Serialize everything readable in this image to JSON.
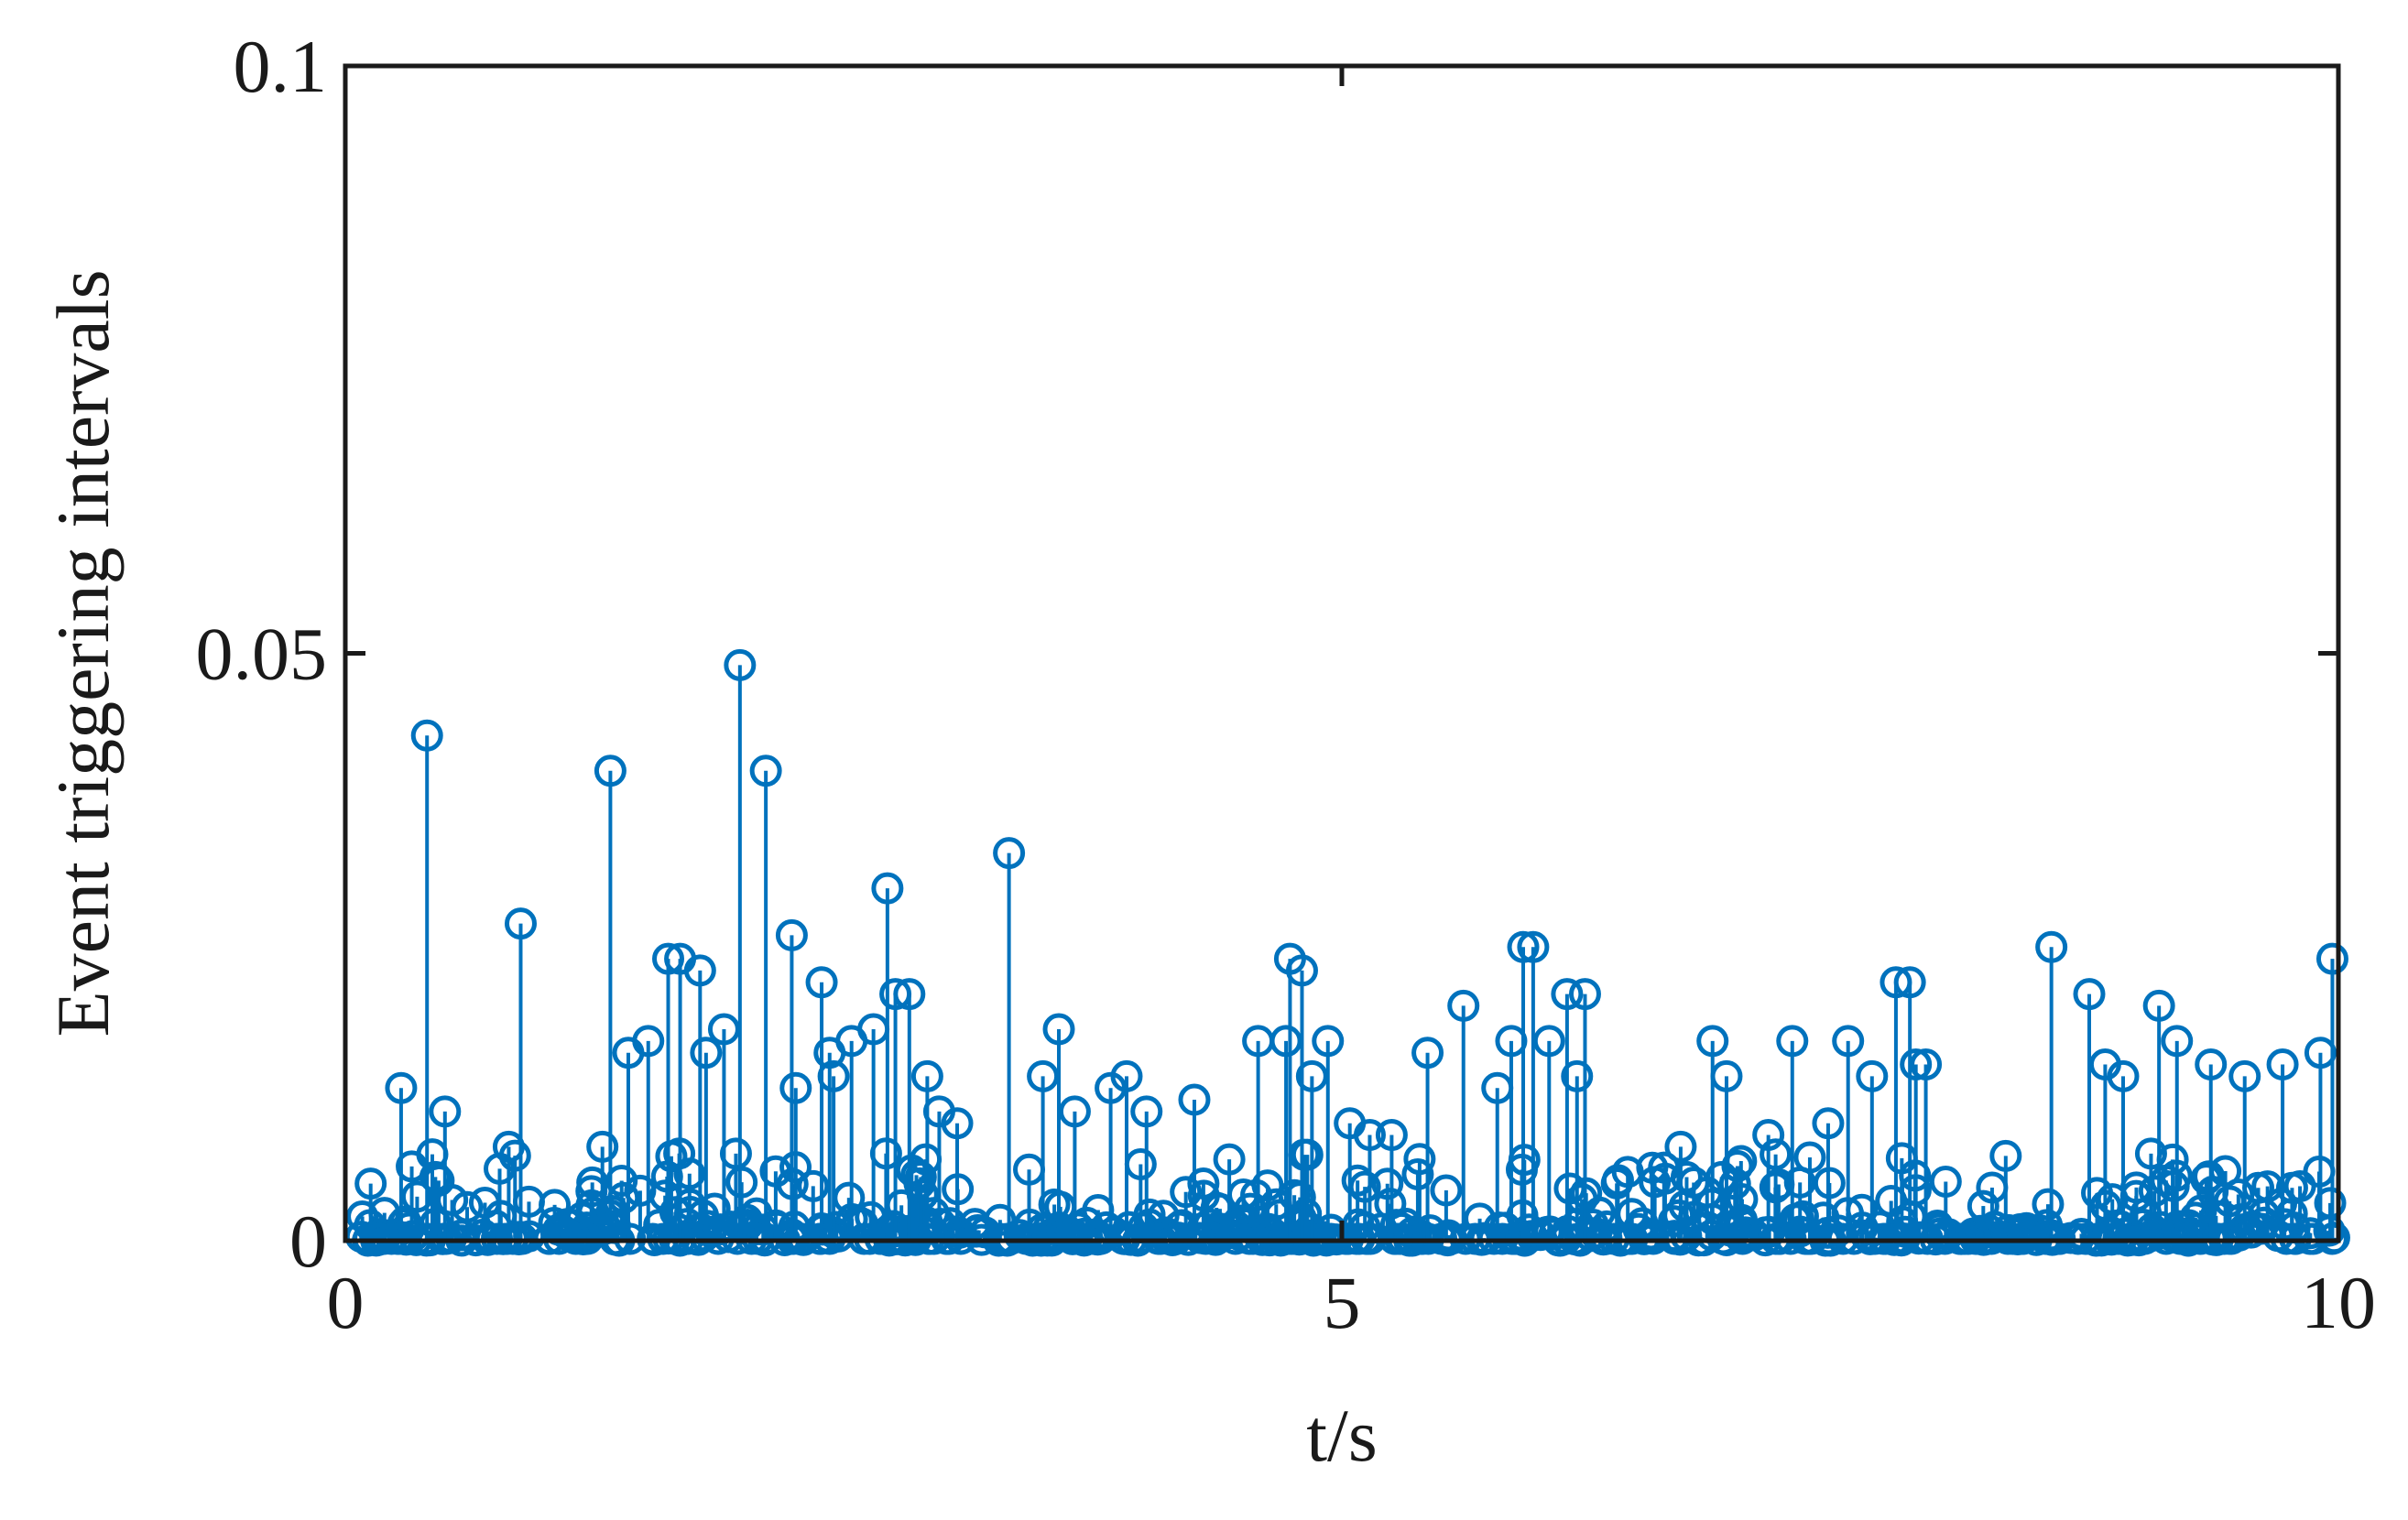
{
  "chart_data": {
    "type": "scatter",
    "subtype": "stem",
    "title": "",
    "xlabel": "t/s",
    "ylabel": "Event triggering intervals",
    "xlim": [
      0,
      10
    ],
    "ylim": [
      0,
      0.1
    ],
    "xticks": [
      0,
      5,
      10
    ],
    "xtick_labels": [
      "0",
      "5",
      "10"
    ],
    "yticks": [
      0,
      0.05,
      0.1
    ],
    "ytick_labels": [
      "0",
      "0.05",
      "0.1"
    ],
    "grid": false,
    "legend": "none",
    "color": "#0072BD",
    "peaks": {
      "x": [
        0.28,
        0.41,
        0.5,
        0.82,
        0.88,
        1.29,
        1.33,
        1.42,
        1.52,
        1.62,
        1.68,
        1.78,
        1.81,
        1.9,
        1.98,
        2.11,
        2.24,
        2.26,
        2.39,
        2.43,
        2.45,
        2.54,
        2.65,
        2.72,
        2.76,
        2.83,
        2.92,
        2.98,
        3.07,
        3.33,
        3.5,
        3.58,
        3.66,
        3.84,
        3.92,
        4.02,
        4.26,
        4.58,
        4.72,
        4.74,
        4.8,
        4.85,
        4.93,
        5.04,
        5.14,
        5.25,
        5.43,
        5.61,
        5.78,
        5.85,
        5.91,
        5.96,
        6.04,
        6.13,
        6.18,
        6.22,
        6.57,
        6.7,
        6.86,
        6.93,
        7.14,
        7.26,
        7.44,
        7.54,
        7.66,
        7.78,
        7.85,
        7.88,
        7.93,
        8.56,
        8.75,
        8.83,
        8.92,
        9.1,
        9.19,
        9.36,
        9.53,
        9.72,
        9.91,
        9.97
      ],
      "y": [
        0.013,
        0.043,
        0.011,
        0.008,
        0.027,
        0.008,
        0.04,
        0.016,
        0.017,
        0.024,
        0.024,
        0.023,
        0.016,
        0.018,
        0.049,
        0.04,
        0.026,
        0.013,
        0.022,
        0.016,
        0.014,
        0.017,
        0.018,
        0.03,
        0.021,
        0.021,
        0.014,
        0.011,
        0.01,
        0.033,
        0.014,
        0.018,
        0.011,
        0.013,
        0.014,
        0.011,
        0.012,
        0.017,
        0.017,
        0.024,
        0.023,
        0.014,
        0.017,
        0.01,
        0.009,
        0.009,
        0.016,
        0.02,
        0.013,
        0.017,
        0.025,
        0.025,
        0.017,
        0.021,
        0.014,
        0.021,
        0.005,
        0.008,
        0.017,
        0.014,
        0.009,
        0.017,
        0.01,
        0.017,
        0.014,
        0.022,
        0.022,
        0.015,
        0.015,
        0.025,
        0.021,
        0.015,
        0.014,
        0.02,
        0.017,
        0.015,
        0.014,
        0.015,
        0.016,
        0.024
      ]
    },
    "baseline_cluster": "dense cluster of triggering intervals between 0 and about 0.008 across t = 0 to 10"
  }
}
